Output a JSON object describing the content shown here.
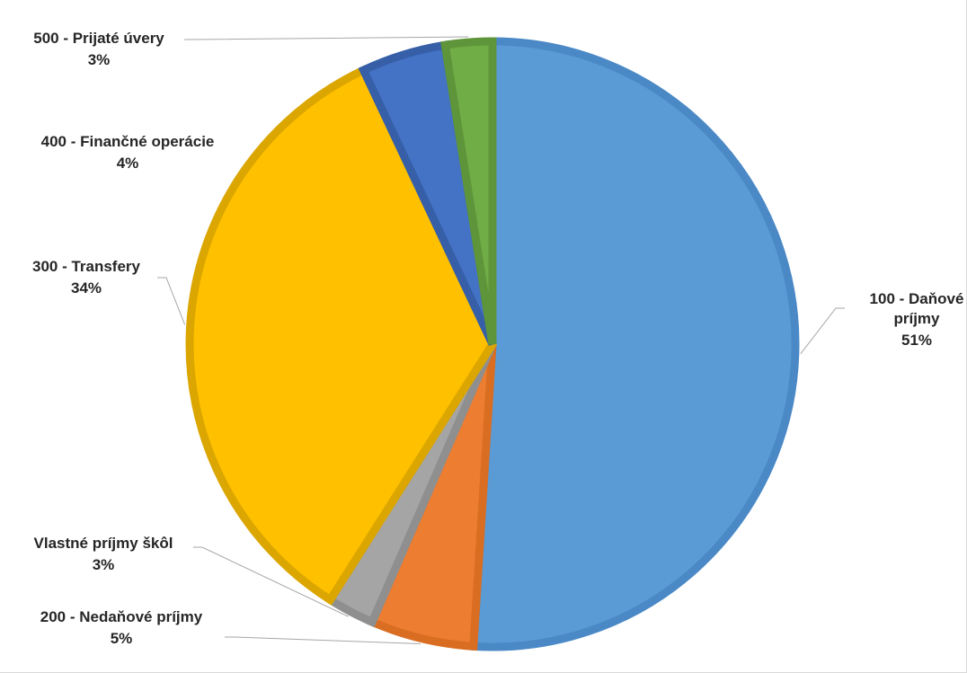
{
  "chart_data": {
    "type": "pie",
    "title": "",
    "slices": [
      {
        "label": "100 - Daňové príjmy",
        "percent_label": "51%",
        "value": 51,
        "color": "#5b9bd5",
        "border": "#4a89c6"
      },
      {
        "label": "200 - Nedaňové príjmy",
        "percent_label": "5%",
        "value": 5.5,
        "color": "#ed7d31",
        "border": "#d96d22"
      },
      {
        "label": "Vlastné príjmy škôl",
        "percent_label": "3%",
        "value": 2.5,
        "color": "#a5a5a5",
        "border": "#8f8f8f"
      },
      {
        "label": "300 - Transfery",
        "percent_label": "34%",
        "value": 34,
        "color": "#ffc000",
        "border": "#dba600"
      },
      {
        "label": "400 - Finančné operácie",
        "percent_label": "4%",
        "value": 4.5,
        "color": "#4472c4",
        "border": "#365fa8"
      },
      {
        "label": "500 - Prijaté úvery",
        "percent_label": "3%",
        "value": 2.5,
        "color": "#70ad47",
        "border": "#5e953a"
      }
    ],
    "legend": "none",
    "data_labels": "outside with leader lines"
  }
}
